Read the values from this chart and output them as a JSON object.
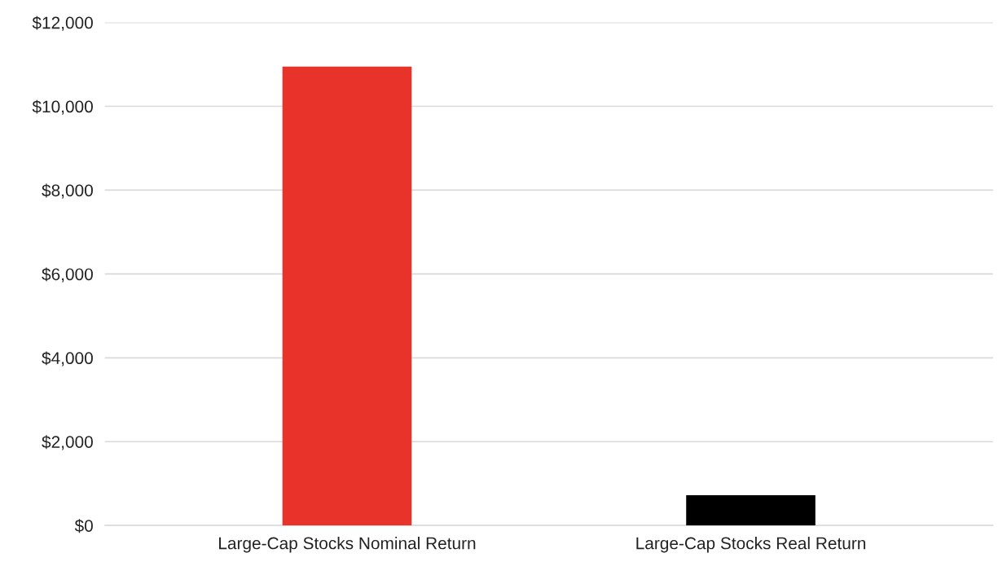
{
  "chart_data": {
    "type": "bar",
    "categories": [
      "Large-Cap Stocks Nominal Return",
      "Large-Cap Stocks Real Return"
    ],
    "values": [
      10950,
      720
    ],
    "colors": [
      "#e8332a",
      "#000000"
    ],
    "ylim": [
      0,
      12000
    ],
    "yticks": [
      {
        "value": 0,
        "label": "$0"
      },
      {
        "value": 2000,
        "label": "$2,000"
      },
      {
        "value": 4000,
        "label": "$4,000"
      },
      {
        "value": 6000,
        "label": "$6,000"
      },
      {
        "value": 8000,
        "label": "$8,000"
      },
      {
        "value": 10000,
        "label": "$10,000"
      },
      {
        "value": 12000,
        "label": "$12,000"
      }
    ],
    "grid": "y"
  }
}
